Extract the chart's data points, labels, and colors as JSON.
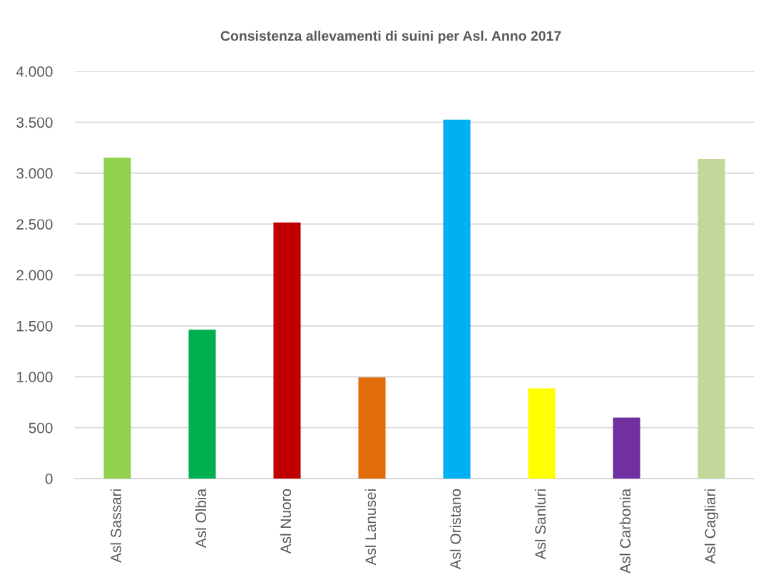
{
  "chart_data": {
    "type": "bar",
    "title": "Consistenza allevamenti di suini per Asl. Anno 2017",
    "categories": [
      "Asl Sassari",
      "Asl Olbia",
      "Asl Nuoro",
      "Asl Lanusei",
      "Asl Oristano",
      "Asl Sanluri",
      "Asl Carbonia",
      "Asl Cagliari"
    ],
    "values": [
      3152,
      1463,
      2515,
      993,
      3525,
      886,
      599,
      3138
    ],
    "colors": [
      "#92d050",
      "#00b050",
      "#c00000",
      "#e36c0a",
      "#00b0f0",
      "#ffff00",
      "#7030a0",
      "#c4d79b"
    ],
    "ylim": [
      0,
      4000
    ],
    "yticks": [
      0,
      500,
      {
        "value": 1000,
        "label": "1.000"
      },
      {
        "value": 1500,
        "label": "1.500"
      },
      {
        "value": 2000,
        "label": "2.000"
      },
      {
        "value": 2500,
        "label": "2.500"
      },
      {
        "value": 3000,
        "label": "3.000"
      },
      {
        "value": 3500,
        "label": "3.500"
      },
      {
        "value": 4000,
        "label": "4.000"
      }
    ],
    "grid": "y"
  }
}
